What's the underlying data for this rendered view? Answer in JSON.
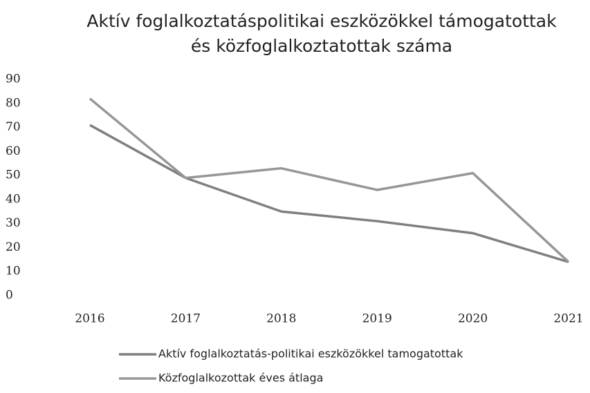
{
  "chart_data": {
    "type": "line",
    "title": [
      "Aktív foglalkoztatáspolitikai eszközökkel támogatottak",
      "és közfoglalkoztatottak száma"
    ],
    "categories": [
      "2016",
      "2017",
      "2018",
      "2019",
      "2020",
      "2021"
    ],
    "series": [
      {
        "name": "Aktív foglalkoztatás-politikai eszközökkel tamogatottak",
        "color": "#7f7f7f",
        "values": [
          71,
          49,
          35,
          31,
          26,
          14
        ]
      },
      {
        "name": "Közfoglalkozottak éves átlaga",
        "color": "#969696",
        "values": [
          82,
          49,
          53,
          44,
          51,
          14
        ]
      }
    ],
    "ylim": [
      0,
      90
    ],
    "yticks": [
      0,
      10,
      20,
      30,
      40,
      50,
      60,
      70,
      80,
      90
    ],
    "grid": false,
    "legend": "bottom"
  }
}
